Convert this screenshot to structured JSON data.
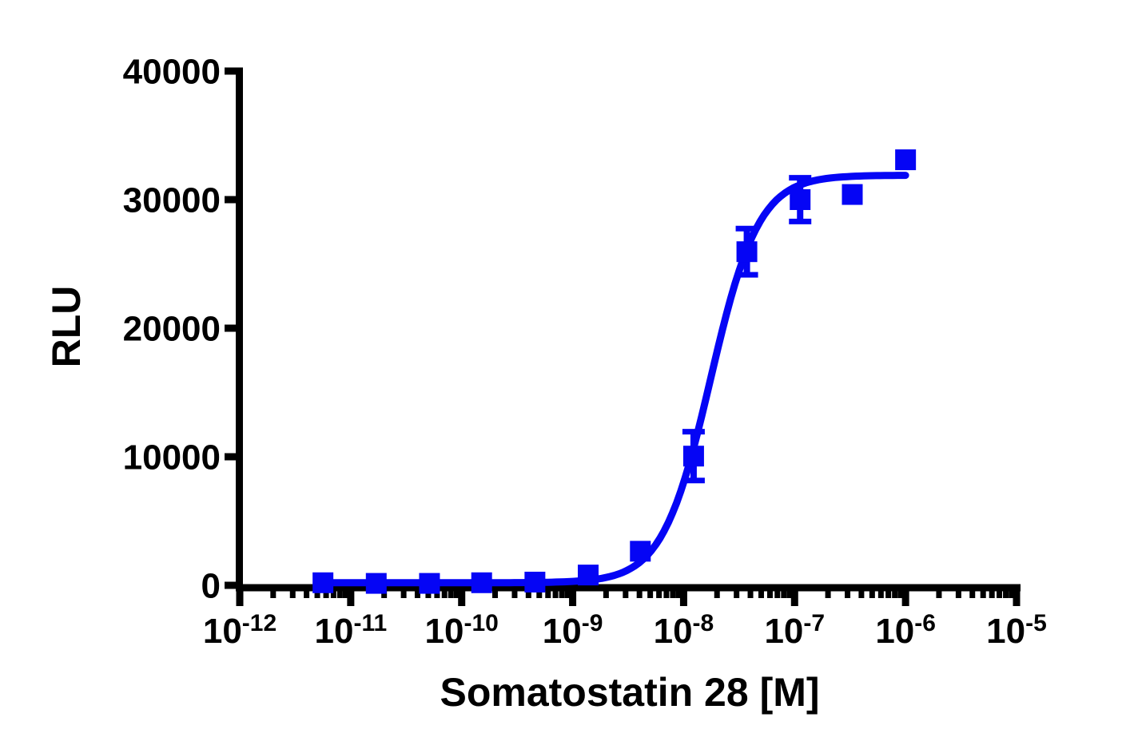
{
  "figure": {
    "background_color": "#ffffff",
    "axis_color": "#000000",
    "series_color": "#0505F5"
  },
  "chart_data": {
    "type": "scatter",
    "title": "",
    "xlabel": "Somatostatin 28 [M]",
    "ylabel": "RLU",
    "x_scale": "log10",
    "x_tick_base": "10",
    "x_tick_exponents": [
      -12,
      -11,
      -10,
      -9,
      -8,
      -7,
      -6,
      -5
    ],
    "xlim_exponents": [
      -12,
      -5
    ],
    "y_ticks": [
      0,
      10000,
      20000,
      30000,
      40000
    ],
    "ylim": [
      0,
      40000
    ],
    "grid": "off",
    "legend": "none",
    "series": [
      {
        "name": "Somatostatin 28",
        "marker": "square",
        "color": "#0505F5",
        "points": [
          {
            "conc_M": 5.65e-12,
            "log_conc": -11.25,
            "rlu": 200,
            "sem": 0
          },
          {
            "conc_M": 1.69e-11,
            "log_conc": -10.77,
            "rlu": 150,
            "sem": 0
          },
          {
            "conc_M": 5.08e-11,
            "log_conc": -10.29,
            "rlu": 150,
            "sem": 0
          },
          {
            "conc_M": 1.52e-10,
            "log_conc": -9.82,
            "rlu": 200,
            "sem": 0
          },
          {
            "conc_M": 4.57e-10,
            "log_conc": -9.34,
            "rlu": 250,
            "sem": 0
          },
          {
            "conc_M": 1.37e-09,
            "log_conc": -8.86,
            "rlu": 800,
            "sem": 0
          },
          {
            "conc_M": 4.12e-09,
            "log_conc": -8.39,
            "rlu": 2650,
            "sem": 0
          },
          {
            "conc_M": 1.23e-08,
            "log_conc": -7.91,
            "rlu": 10050,
            "sem": 1900
          },
          {
            "conc_M": 3.7e-08,
            "log_conc": -7.43,
            "rlu": 25950,
            "sem": 1800
          },
          {
            "conc_M": 1.11e-07,
            "log_conc": -6.95,
            "rlu": 30000,
            "sem": 1700
          },
          {
            "conc_M": 3.33e-07,
            "log_conc": -6.48,
            "rlu": 30400,
            "sem": 0
          },
          {
            "conc_M": 1e-06,
            "log_conc": -6.0,
            "rlu": 33100,
            "sem": 0
          }
        ]
      }
    ],
    "fit": {
      "model": "4PL-sigmoid",
      "bottom": 200,
      "top": 31900,
      "ec50_M": 1.75e-08,
      "hill": 2.0,
      "draw_range_log": [
        -11.25,
        -6.0
      ]
    }
  }
}
